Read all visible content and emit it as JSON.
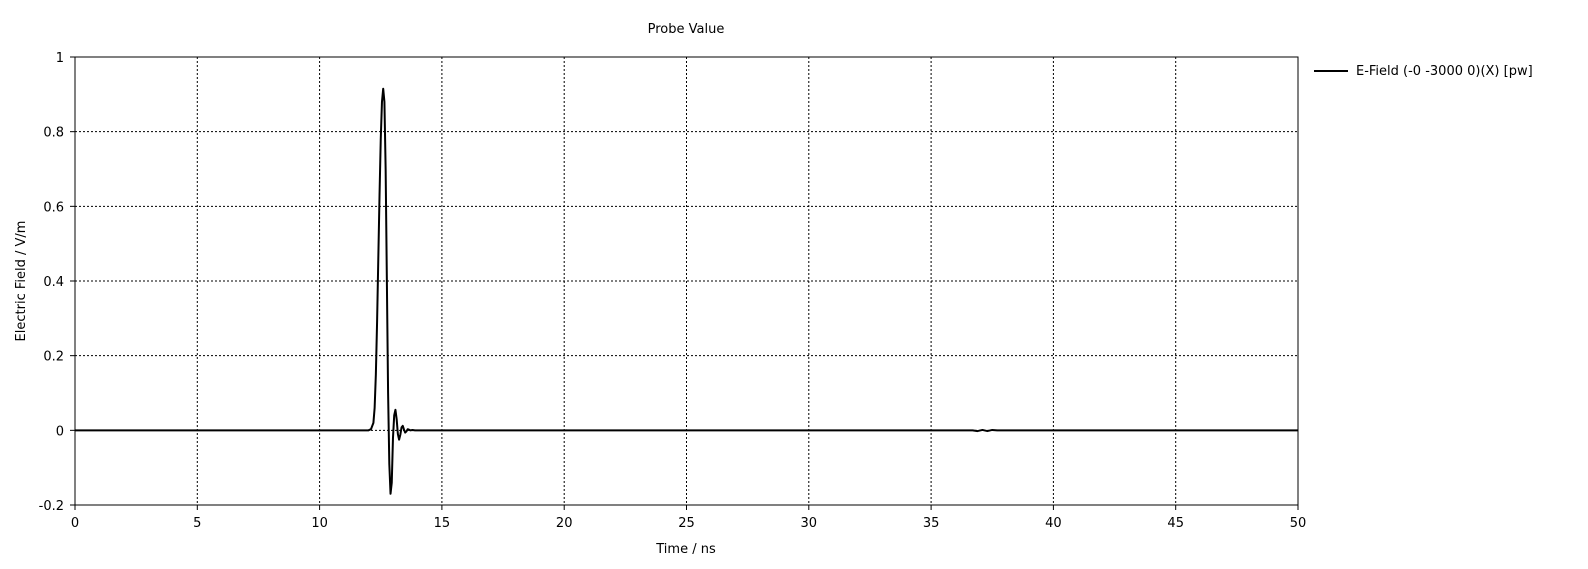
{
  "chart_data": {
    "type": "line",
    "title": "Probe Value",
    "xlabel": "Time / ns",
    "ylabel": "Electric Field / V/m",
    "xlim": [
      0,
      50
    ],
    "ylim": [
      -0.2,
      1
    ],
    "xticks": [
      0,
      5,
      10,
      15,
      20,
      25,
      30,
      35,
      40,
      45,
      50
    ],
    "yticks": [
      -0.2,
      0,
      0.2,
      0.4,
      0.6,
      0.8,
      1
    ],
    "ytick_labels": [
      "-0.2",
      "0",
      "0.2",
      "0.4",
      "0.6",
      "0.8",
      "1"
    ],
    "grid": true,
    "legend_position": "right",
    "series": [
      {
        "name": "E-Field (-0 -3000 0)(X) [pw]",
        "color": "#000000",
        "x": [
          0,
          12.0,
          12.1,
          12.2,
          12.25,
          12.3,
          12.35,
          12.4,
          12.45,
          12.5,
          12.55,
          12.6,
          12.65,
          12.7,
          12.75,
          12.8,
          12.85,
          12.9,
          12.95,
          13.0,
          13.05,
          13.1,
          13.15,
          13.2,
          13.25,
          13.3,
          13.35,
          13.4,
          13.45,
          13.5,
          13.55,
          13.6,
          13.65,
          13.7,
          13.8,
          13.9,
          14.0,
          14.2,
          36.7,
          36.9,
          37.1,
          37.3,
          37.5,
          37.7,
          50
        ],
        "y": [
          0,
          0,
          0.003,
          0.02,
          0.06,
          0.15,
          0.29,
          0.46,
          0.63,
          0.78,
          0.88,
          0.915,
          0.88,
          0.7,
          0.4,
          0.1,
          -0.09,
          -0.17,
          -0.14,
          -0.02,
          0.04,
          0.055,
          0.03,
          -0.01,
          -0.025,
          -0.012,
          0.008,
          0.012,
          0.002,
          -0.006,
          -0.003,
          0.003,
          0.002,
          0,
          0.001,
          0,
          0,
          0,
          0,
          -0.002,
          0.001,
          -0.002,
          0.001,
          0,
          0
        ]
      }
    ]
  }
}
